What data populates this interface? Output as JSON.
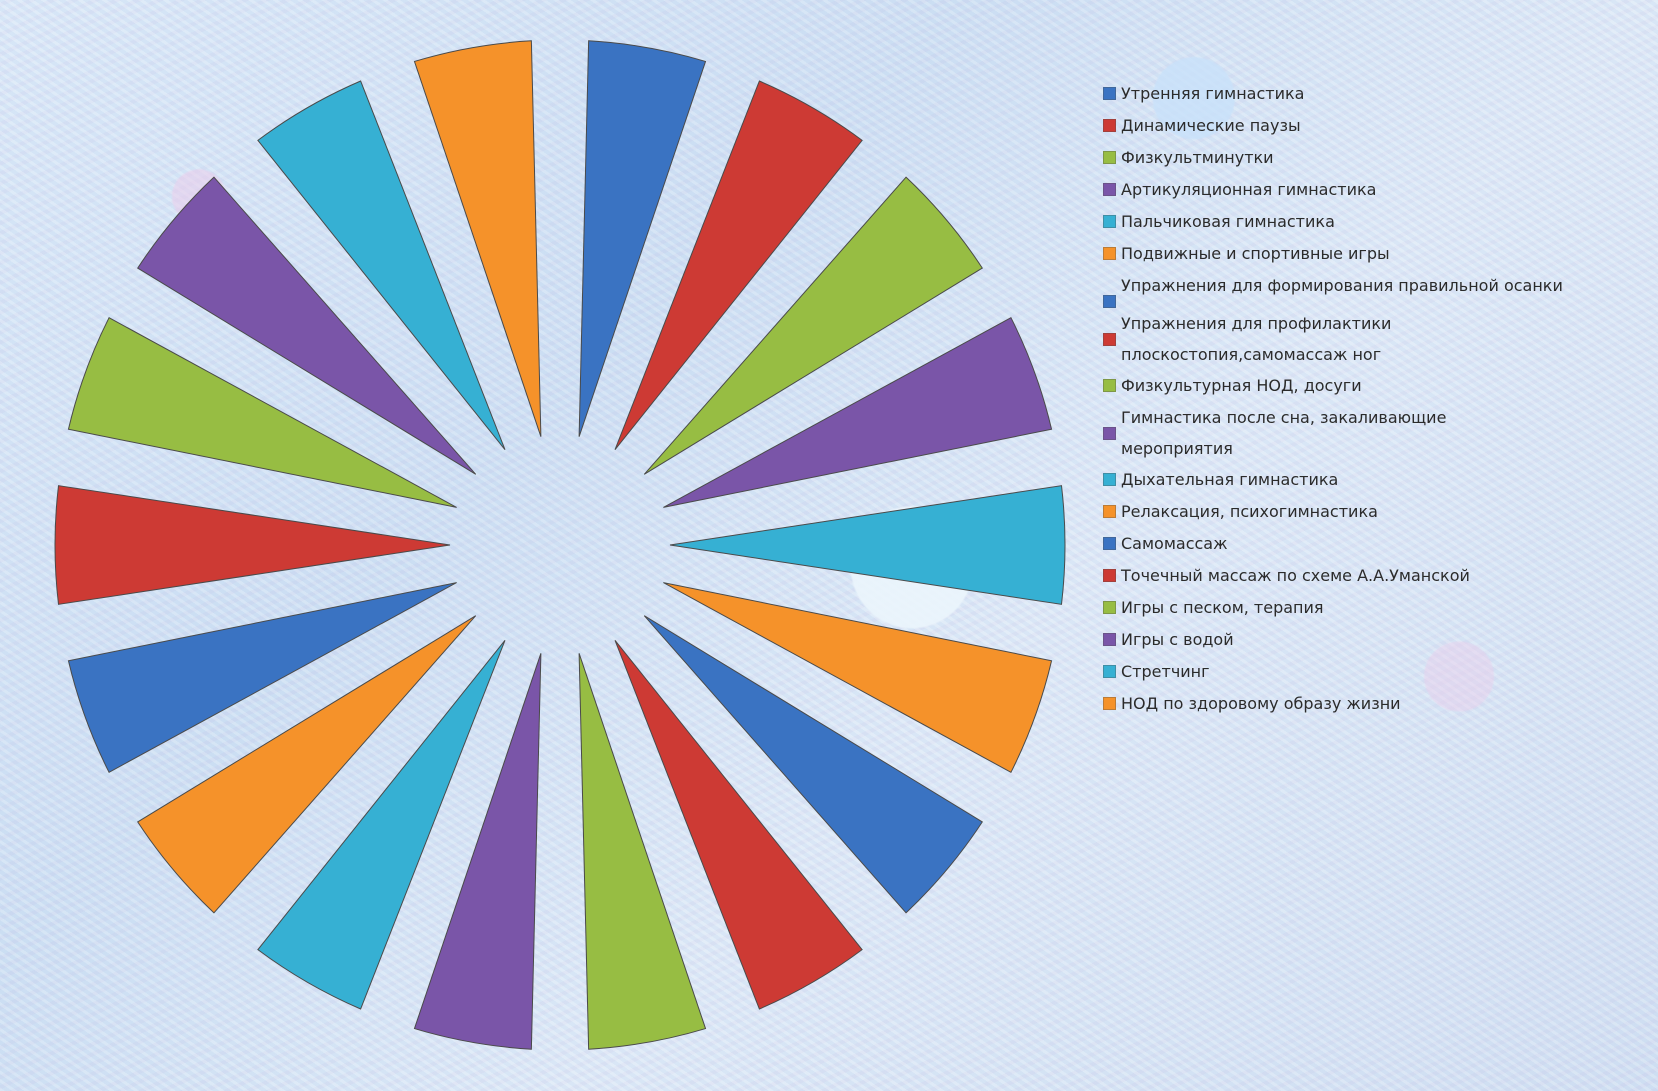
{
  "chart_data": {
    "type": "pie",
    "title": "",
    "exploded": true,
    "legend_position": "right",
    "categories": [
      "Утренняя гимнастика",
      "Динамические паузы",
      "Физкультминутки",
      "Артикуляционная гимнастика",
      "Пальчиковая гимнастика",
      "Подвижные и спортивные игры",
      "Упражнения для формирования правильной осанки",
      "Упражнения для профилактики плоскостопия,самомассаж ног",
      "Физкультурная НОД, досуги",
      "Гимнастика после сна, закаливающие мероприятия",
      "Дыхательная гимнастика",
      "Релаксация, психогимнастика",
      "Самомассаж",
      "Точечный массаж по схеме А.А.Уманской",
      "Игры с песком, терапия",
      "Игры с водой",
      "Стретчинг",
      "НОД по здоровому образу жизни"
    ],
    "values": [
      1,
      1,
      1,
      1,
      1,
      1,
      1,
      1,
      1,
      1,
      1,
      1,
      1,
      1,
      1,
      1,
      1,
      1
    ],
    "colors": [
      "#3a73c2",
      "#cd3a34",
      "#97bd43",
      "#7a55a8",
      "#36b0d3",
      "#f5922a",
      "#3a73c2",
      "#cd3a34",
      "#97bd43",
      "#7a55a8",
      "#36b0d3",
      "#f5922a",
      "#3a73c2",
      "#cd3a34",
      "#97bd43",
      "#7a55a8",
      "#36b0d3",
      "#f5922a"
    ]
  },
  "legend": {
    "items": [
      "Утренняя гимнастика",
      "Динамические паузы",
      "Физкультминутки",
      "Артикуляционная гимнастика",
      "Пальчиковая гимнастика",
      "Подвижные и спортивные игры",
      "Упражнения для формирования правильной осанки",
      "Упражнения для профилактики плоскостопия,самомассаж ног",
      "Физкультурная НОД, досуги",
      "Гимнастика после сна, закаливающие мероприятия",
      "Дыхательная гимнастика",
      "Релаксация, психогимнастика",
      "Самомассаж",
      "Точечный массаж по схеме А.А.Уманской",
      "Игры с песком, терапия",
      "Игры с водой",
      "Стретчинг",
      "НОД по здоровому образу жизни"
    ]
  }
}
